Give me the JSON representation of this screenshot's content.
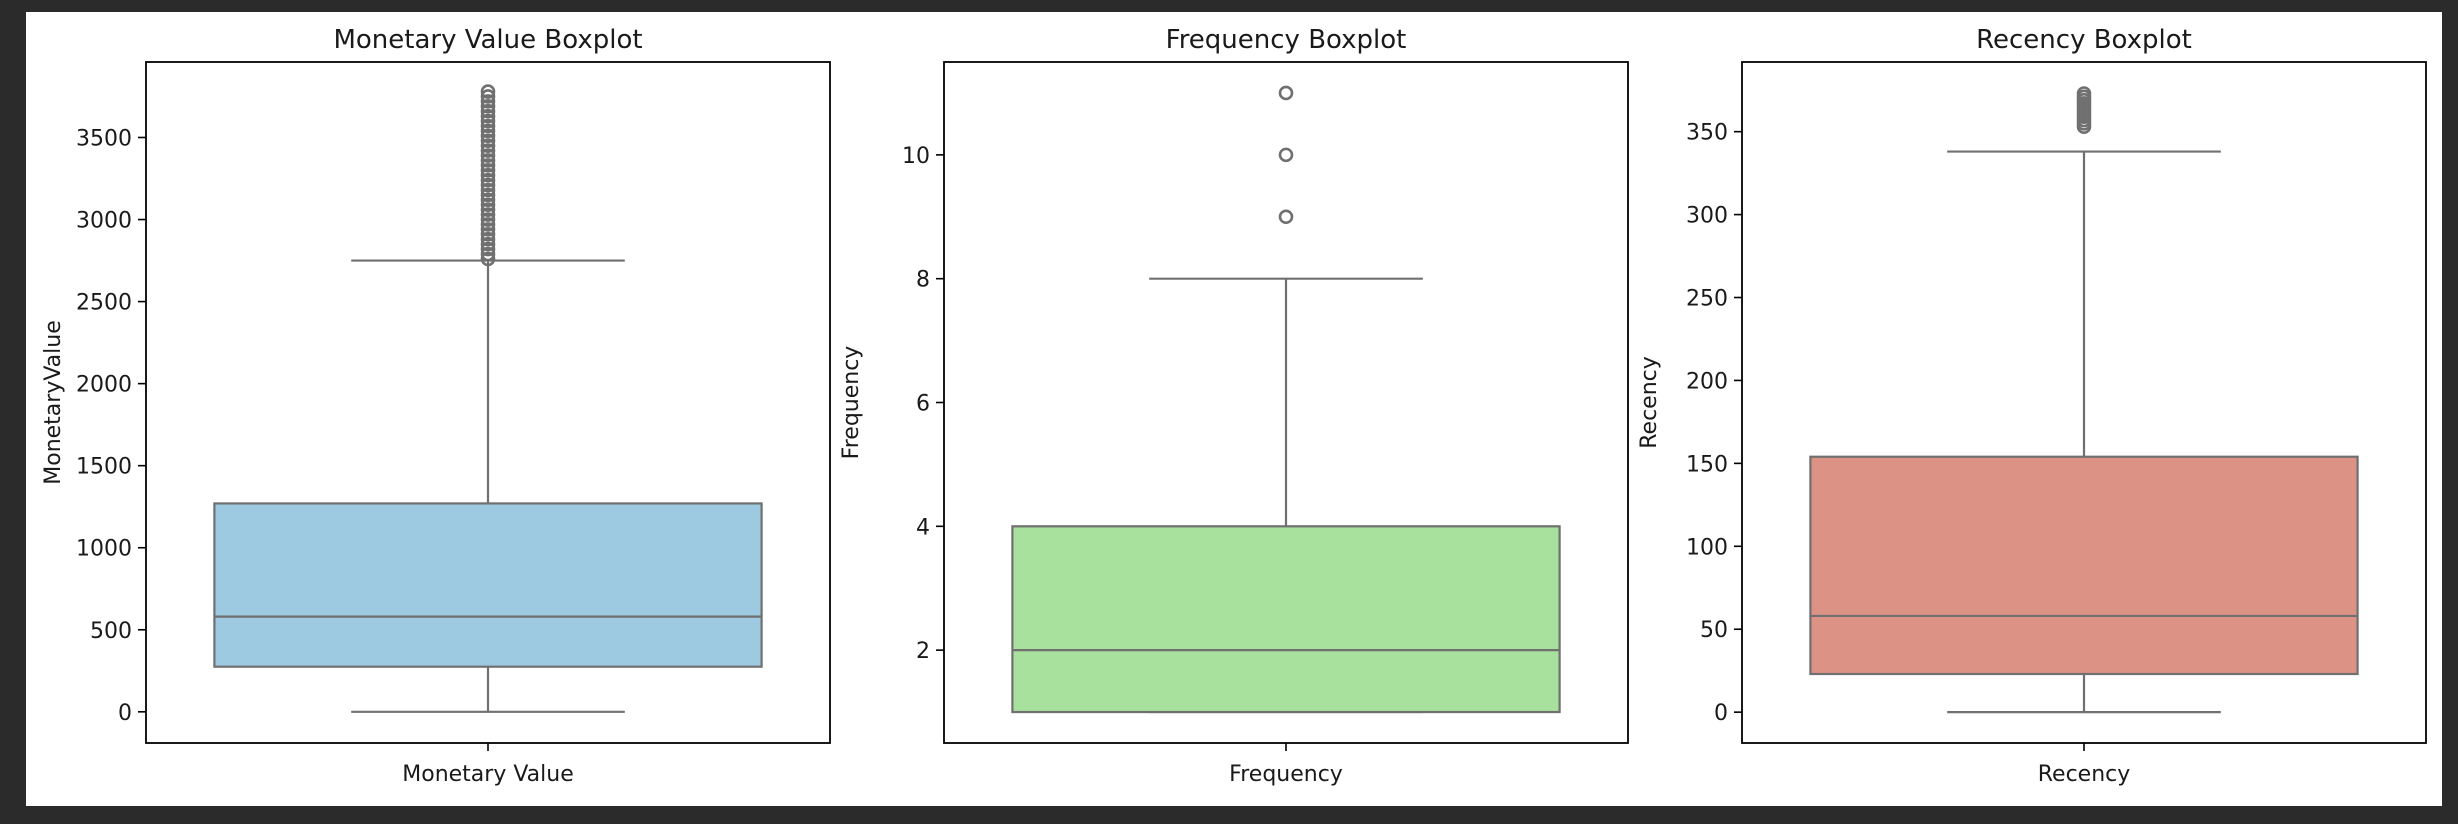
{
  "chart_data": [
    {
      "type": "box",
      "title": "Monetary Value Boxplot",
      "xlabel": "Monetary Value",
      "ylabel": "MonetaryValue",
      "category": "Monetary Value",
      "color": "#9ecae1",
      "ylim": [
        -190,
        3960
      ],
      "yticks": [
        0,
        500,
        1000,
        1500,
        2000,
        2500,
        3000,
        3500
      ],
      "stats": {
        "whisker_low": 0,
        "q1": 275,
        "median": 580,
        "q3": 1270,
        "whisker_high": 2750
      },
      "outliers": [
        2760,
        2790,
        2820,
        2850,
        2880,
        2910,
        2940,
        2970,
        3000,
        3030,
        3060,
        3090,
        3120,
        3150,
        3180,
        3210,
        3240,
        3270,
        3300,
        3330,
        3360,
        3390,
        3420,
        3450,
        3480,
        3510,
        3540,
        3570,
        3600,
        3630,
        3660,
        3690,
        3720,
        3750,
        3780
      ]
    },
    {
      "type": "box",
      "title": "Frequency Boxplot",
      "xlabel": "Frequency",
      "ylabel": "Frequency",
      "category": "Frequency",
      "color": "#a8e09e",
      "ylim": [
        0.5,
        11.5
      ],
      "yticks": [
        2,
        4,
        6,
        8,
        10
      ],
      "stats": {
        "whisker_low": 1,
        "q1": 1,
        "median": 2,
        "q3": 4,
        "whisker_high": 8
      },
      "outliers": [
        9,
        10,
        11
      ]
    },
    {
      "type": "box",
      "title": "Recency Boxplot",
      "xlabel": "Recency",
      "ylabel": "Recency",
      "category": "Recency",
      "color": "#dd9286",
      "ylim": [
        -18.6,
        392
      ],
      "yticks": [
        0,
        50,
        100,
        150,
        200,
        250,
        300,
        350
      ],
      "stats": {
        "whisker_low": 0,
        "q1": 23,
        "median": 58,
        "q3": 154,
        "whisker_high": 338
      },
      "outliers": [
        353,
        355,
        357,
        359,
        361,
        363,
        365,
        367,
        369,
        371,
        373
      ]
    }
  ]
}
